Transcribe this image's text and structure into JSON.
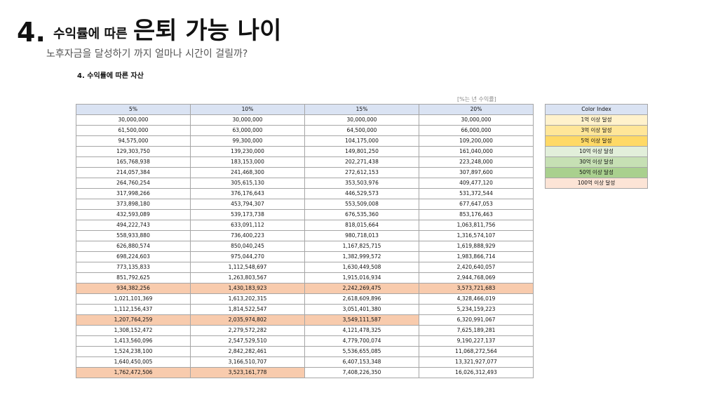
{
  "header": {
    "title_number": "4.",
    "title_small": "수익률에 따른",
    "title_large": "은퇴 가능 나이",
    "subtitle": "노후자금을 달성하기 까지 얼마나 시간이 걸릴까?"
  },
  "section_title": "4. 수익률에 따른 자산",
  "unit_note": "[%는 년 수익률]",
  "table": {
    "columns": [
      "5%",
      "10%",
      "15%",
      "20%"
    ],
    "rows": [
      [
        "30,000,000",
        "30,000,000",
        "30,000,000",
        "30,000,000"
      ],
      [
        "61,500,000",
        "63,000,000",
        "64,500,000",
        "66,000,000"
      ],
      [
        "94,575,000",
        "99,300,000",
        "104,175,000",
        "109,200,000"
      ],
      [
        "129,303,750",
        "139,230,000",
        "149,801,250",
        "161,040,000"
      ],
      [
        "165,768,938",
        "183,153,000",
        "202,271,438",
        "223,248,000"
      ],
      [
        "214,057,384",
        "241,468,300",
        "272,612,153",
        "307,897,600"
      ],
      [
        "264,760,254",
        "305,615,130",
        "353,503,976",
        "409,477,120"
      ],
      [
        "317,998,266",
        "376,176,643",
        "446,529,573",
        "531,372,544"
      ],
      [
        "373,898,180",
        "453,794,307",
        "553,509,008",
        "677,647,053"
      ],
      [
        "432,593,089",
        "539,173,738",
        "676,535,360",
        "853,176,463"
      ],
      [
        "494,222,743",
        "633,091,112",
        "818,015,664",
        "1,063,811,756"
      ],
      [
        "558,933,880",
        "736,400,223",
        "980,718,013",
        "1,316,574,107"
      ],
      [
        "626,880,574",
        "850,040,245",
        "1,167,825,715",
        "1,619,888,929"
      ],
      [
        "698,224,603",
        "975,044,270",
        "1,382,999,572",
        "1,983,866,714"
      ],
      [
        "773,135,833",
        "1,112,548,697",
        "1,630,449,508",
        "2,420,640,057"
      ],
      [
        "851,792,625",
        "1,263,803,567",
        "1,915,016,934",
        "2,944,768,069"
      ],
      [
        "934,382,256",
        "1,430,183,923",
        "2,242,269,475",
        "3,573,721,683"
      ],
      [
        "1,021,101,369",
        "1,613,202,315",
        "2,618,609,896",
        "4,328,466,019"
      ],
      [
        "1,112,156,437",
        "1,814,522,547",
        "3,051,401,380",
        "5,234,159,223"
      ],
      [
        "1,207,764,259",
        "2,035,974,802",
        "3,549,111,587",
        "6,320,991,067"
      ],
      [
        "1,308,152,472",
        "2,279,572,282",
        "4,121,478,325",
        "7,625,189,281"
      ],
      [
        "1,413,560,096",
        "2,547,529,510",
        "4,779,700,074",
        "9,190,227,137"
      ],
      [
        "1,524,238,100",
        "2,842,282,461",
        "5,536,655,085",
        "11,068,272,564"
      ],
      [
        "1,640,450,005",
        "3,166,510,707",
        "6,407,153,348",
        "13,321,927,077"
      ],
      [
        "1,762,472,506",
        "3,523,161,778",
        "7,408,226,350",
        "16,026,312,493"
      ]
    ],
    "highlights": [
      [
        16,
        0
      ],
      [
        16,
        1
      ],
      [
        16,
        2
      ],
      [
        16,
        3
      ],
      [
        19,
        0
      ],
      [
        19,
        1
      ],
      [
        19,
        2
      ],
      [
        24,
        0
      ],
      [
        24,
        1
      ]
    ],
    "highlight_color": "#f8cbad",
    "header_color": "#dae3f3"
  },
  "legend": {
    "title": "Color Index",
    "items": [
      {
        "label": "1억 이상 달성",
        "color": "#fff2cc"
      },
      {
        "label": "3억 이상 달성",
        "color": "#ffe699"
      },
      {
        "label": "5억 이상 달성",
        "color": "#ffd966"
      },
      {
        "label": "10억 이상 달성",
        "color": "#e2efda"
      },
      {
        "label": "30억 이상 달성",
        "color": "#c6e0b4"
      },
      {
        "label": "50억 이상 달성",
        "color": "#a9d08e"
      },
      {
        "label": "100억 이상 달성",
        "color": "#fce4d6"
      }
    ]
  }
}
